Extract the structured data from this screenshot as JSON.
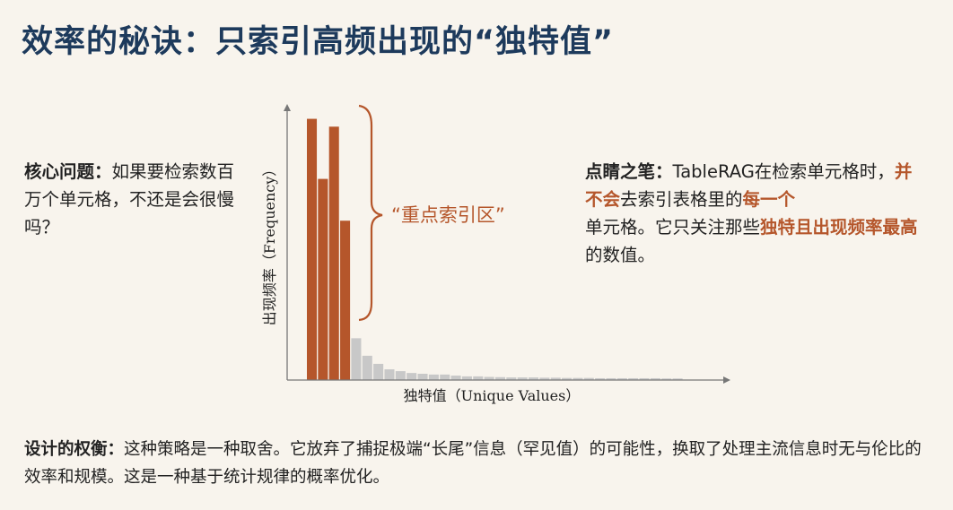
{
  "title": "效率的秘诀：只索引高频出现的“独特值”",
  "left_note": {
    "label": "核心问题：",
    "text": "如果要检索数百万个单元格，不还是会很慢吗？"
  },
  "right_note": {
    "label": "点睛之笔：",
    "t1": "TableRAG在检索单元格时，",
    "h1": "并不会",
    "t2": "去索引表格里的",
    "h2": "每一个",
    "t3": "单元格。它只关注那些",
    "h3": "独特且出现频率最高",
    "t4": "的数值。"
  },
  "bottom_note": {
    "label": "设计的权衡：",
    "text": "这种策略是一种取舍。它放弃了捕捉极端“长尾”信息（罕见值）的可能性，换取了处理主流信息时无与伦比的效率和规模。这是一种基于统计规律的概率优化。"
  },
  "colors": {
    "accent": "#b5562b",
    "tail": "#c8c8c8",
    "title": "#1d3a5c",
    "background": "#f8f4ed"
  },
  "chart_data": {
    "type": "bar",
    "xlabel": "独特值（Unique Values）",
    "ylabel": "出现频率（Frequency）",
    "annotation": "“重点索引区”",
    "highlighted_count": 4,
    "values": [
      100,
      77,
      97,
      61,
      16,
      9.3,
      6.2,
      4.1,
      3.4,
      2.7,
      2.4,
      2.1,
      2.1,
      1.7,
      1.4,
      1.4,
      1.2,
      1.1,
      1.0,
      1.0,
      1.0,
      0.9,
      0.9,
      0.8,
      0.8,
      0.8,
      0.7,
      0.7,
      0.7,
      0.7,
      0.7,
      0.7,
      0.6,
      0.6
    ],
    "ylim": [
      0,
      105
    ],
    "grid": false,
    "legend": "none"
  }
}
